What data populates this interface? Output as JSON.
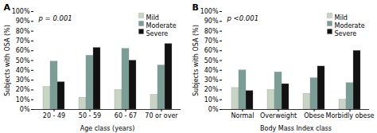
{
  "chart_data": [
    {
      "type": "bar",
      "title": "A",
      "categories": [
        "20 - 49",
        "50 - 59",
        "60 - 67",
        "70 or over"
      ],
      "xlabel": "Age class (years)",
      "ylabel": "Subjects with OSA (%)",
      "annotations": [
        "p = 0.001"
      ],
      "series": [
        {
          "name": "Mild",
          "color": "#c8d5c4",
          "values": [
            23,
            12,
            20,
            15
          ]
        },
        {
          "name": "Moderate",
          "color": "#7a9e96",
          "values": [
            49,
            55,
            62,
            45
          ]
        },
        {
          "name": "Severe",
          "color": "#111111",
          "values": [
            28,
            63,
            50,
            67
          ]
        }
      ],
      "ylim": [
        0,
        100
      ],
      "yticks": [
        {
          "value": 0,
          "label": "0%"
        },
        {
          "value": 10,
          "label": "10%"
        },
        {
          "value": 20,
          "label": "20%"
        },
        {
          "value": 30,
          "label": "30%"
        },
        {
          "value": 40,
          "label": "40%"
        },
        {
          "value": 50,
          "label": "50%"
        },
        {
          "value": 60,
          "label": "60%"
        },
        {
          "value": 70,
          "label": "70%"
        },
        {
          "value": 80,
          "label": "80%"
        },
        {
          "value": 90,
          "label": "90%"
        },
        {
          "value": 100,
          "label": "100%"
        }
      ],
      "legend": "upper right"
    },
    {
      "type": "bar",
      "title": "B",
      "categories": [
        "Normal",
        "Overweight",
        "Obese",
        "Morbidly obese"
      ],
      "xlabel": "Body Mass Index class",
      "ylabel": "Subjects with OSA (%)",
      "annotations": [
        "p <0.001"
      ],
      "series": [
        {
          "name": "Mild",
          "color": "#c8d5c4",
          "values": [
            22,
            20,
            16,
            10
          ]
        },
        {
          "name": "Moderate",
          "color": "#7a9e96",
          "values": [
            40,
            38,
            32,
            27
          ]
        },
        {
          "name": "Severe",
          "color": "#111111",
          "values": [
            19,
            26,
            44,
            60
          ]
        }
      ],
      "ylim": [
        0,
        100
      ],
      "yticks": [
        {
          "value": 0,
          "label": "0%"
        },
        {
          "value": 10,
          "label": "10%"
        },
        {
          "value": 20,
          "label": "20%"
        },
        {
          "value": 30,
          "label": "30%"
        },
        {
          "value": 40,
          "label": "40%"
        },
        {
          "value": 50,
          "label": "50%"
        },
        {
          "value": 60,
          "label": "60%"
        },
        {
          "value": 70,
          "label": "70%"
        },
        {
          "value": 80,
          "label": "80%"
        },
        {
          "value": 90,
          "label": "90%"
        },
        {
          "value": 100,
          "label": "100%"
        }
      ],
      "legend": "upper right"
    }
  ]
}
